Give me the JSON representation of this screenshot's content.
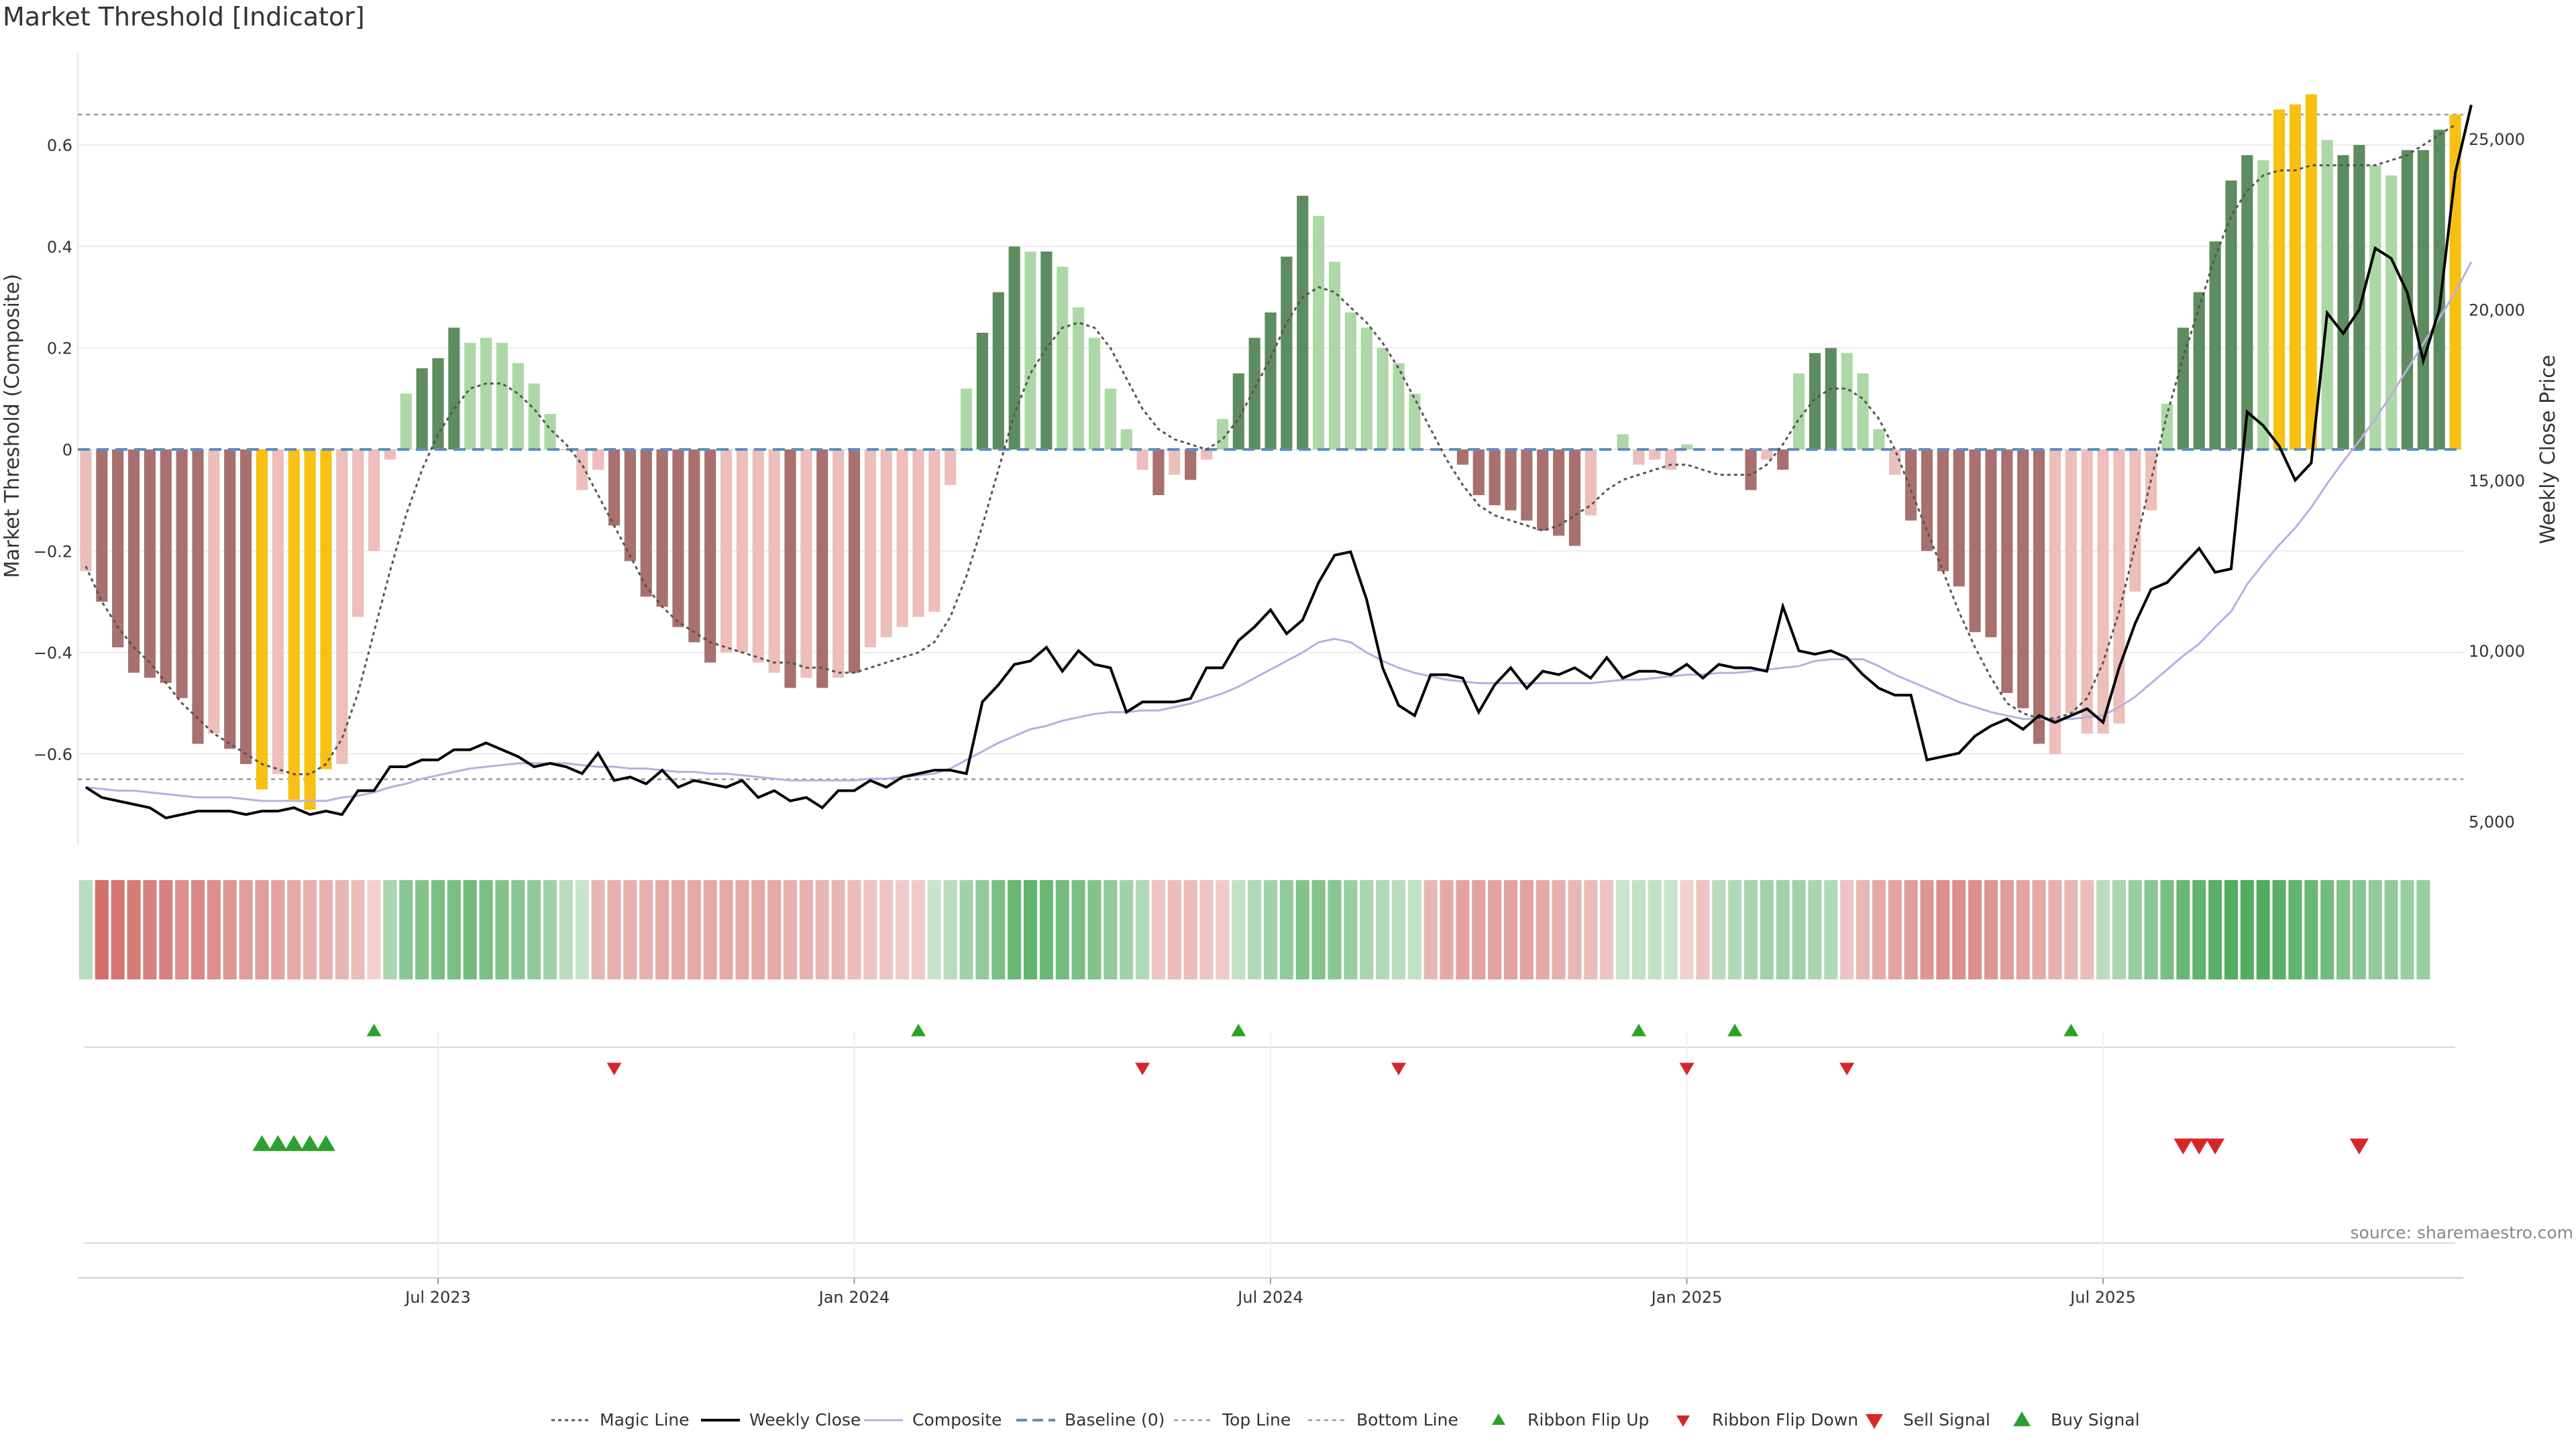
{
  "title": "Market Threshold [Indicator]",
  "source_text": "source: sharemaestro.com",
  "colors": {
    "bull_strong": "#5e8c5e",
    "bull_light": "#acd8a6",
    "bear_strong": "#a8716e",
    "bear_light": "#ecbfba",
    "extreme": "#f8c013",
    "magic_line": "#555555",
    "weekly_close": "#000000",
    "composite": "#b7afe0",
    "baseline": "#5b8fbf",
    "threshold_line": "#999999",
    "green_marker": "#2ca02c",
    "red_marker": "#d62728"
  },
  "chart_data": {
    "type": "bar",
    "title": "Market Threshold [Indicator]",
    "ylabel": "Market Threshold (Composite)",
    "y2label": "Weekly Close Price",
    "ylim": [
      -0.78,
      0.78
    ],
    "y2lim": [
      4300,
      27500
    ],
    "yticks": [
      -0.6,
      -0.4,
      -0.2,
      0,
      0.2,
      0.4,
      0.6
    ],
    "yticklabels": [
      "−0.6",
      "−0.4",
      "−0.2",
      "0",
      "0.2",
      "0.4",
      "0.6"
    ],
    "y2ticks": [
      5000,
      10000,
      15000,
      20000,
      25000
    ],
    "y2ticklabels": [
      "5,000",
      "10,000",
      "15,000",
      "20,000",
      "25,000"
    ],
    "xlabels": [
      {
        "label": "Jul 2023",
        "week": 22
      },
      {
        "label": "Jan 2024",
        "week": 48
      },
      {
        "label": "Jul 2024",
        "week": 74
      },
      {
        "label": "Jan 2025",
        "week": 100
      },
      {
        "label": "Jul 2025",
        "week": 126
      }
    ],
    "top_line": 0.66,
    "bottom_line": -0.65,
    "bars": [
      -0.24,
      -0.3,
      -0.39,
      -0.44,
      -0.45,
      -0.46,
      -0.49,
      -0.58,
      -0.56,
      -0.59,
      -0.62,
      -0.67,
      -0.64,
      -0.69,
      -0.71,
      -0.63,
      -0.62,
      -0.33,
      -0.2,
      -0.02,
      0.11,
      0.16,
      0.18,
      0.24,
      0.21,
      0.22,
      0.21,
      0.17,
      0.13,
      0.07,
      0,
      -0.08,
      -0.04,
      -0.15,
      -0.22,
      -0.29,
      -0.31,
      -0.35,
      -0.38,
      -0.42,
      -0.4,
      -0.4,
      -0.42,
      -0.44,
      -0.47,
      -0.45,
      -0.47,
      -0.45,
      -0.44,
      -0.39,
      -0.37,
      -0.35,
      -0.33,
      -0.32,
      -0.07,
      0.12,
      0.23,
      0.31,
      0.4,
      0.39,
      0.39,
      0.36,
      0.28,
      0.22,
      0.12,
      0.04,
      -0.04,
      -0.09,
      -0.05,
      -0.06,
      -0.02,
      0.06,
      0.15,
      0.22,
      0.27,
      0.38,
      0.5,
      0.46,
      0.37,
      0.27,
      0.24,
      0.2,
      0.17,
      0.11,
      0,
      0,
      -0.03,
      -0.09,
      -0.11,
      -0.12,
      -0.14,
      -0.16,
      -0.17,
      -0.19,
      -0.13,
      0,
      0.03,
      -0.03,
      -0.02,
      -0.04,
      0.01,
      0,
      0,
      0,
      -0.08,
      -0.02,
      -0.04,
      0.15,
      0.19,
      0.2,
      0.19,
      0.15,
      0.04,
      -0.05,
      -0.14,
      -0.2,
      -0.24,
      -0.27,
      -0.36,
      -0.37,
      -0.48,
      -0.51,
      -0.58,
      -0.6,
      -0.52,
      -0.56,
      -0.56,
      -0.54,
      -0.28,
      -0.12,
      0.09,
      0.24,
      0.31,
      0.41,
      0.53,
      0.58,
      0.57,
      0.67,
      0.68,
      0.7,
      0.61,
      0.58,
      0.6,
      0.56,
      0.54,
      0.59,
      0.59,
      0.63,
      0.66
    ],
    "bar_styles": [
      "bl",
      "bs",
      "bs",
      "bs",
      "bs",
      "bs",
      "bs",
      "bs",
      "bl",
      "bs",
      "bs",
      "ex",
      "bl",
      "ex",
      "ex",
      "ex",
      "bl",
      "bl",
      "bl",
      "bl",
      "gl",
      "gs",
      "gs",
      "gs",
      "gl",
      "gl",
      "gl",
      "gl",
      "gl",
      "gl",
      "bs",
      "bl",
      "bl",
      "bs",
      "bs",
      "bs",
      "bs",
      "bs",
      "bs",
      "bs",
      "bl",
      "bl",
      "bl",
      "bl",
      "bs",
      "bl",
      "bs",
      "bl",
      "bs",
      "bl",
      "bl",
      "bl",
      "bl",
      "bl",
      "bl",
      "gl",
      "gs",
      "gs",
      "gs",
      "gl",
      "gs",
      "gl",
      "gl",
      "gl",
      "gl",
      "gl",
      "bl",
      "bs",
      "bl",
      "bs",
      "bl",
      "gl",
      "gs",
      "gs",
      "gs",
      "gs",
      "gs",
      "gl",
      "gl",
      "gl",
      "gl",
      "gl",
      "gl",
      "gl",
      "bs",
      "bs",
      "bs",
      "bs",
      "bs",
      "bs",
      "bs",
      "bs",
      "bs",
      "bs",
      "bl",
      "gl",
      "gl",
      "bl",
      "bl",
      "bl",
      "gl",
      "bl",
      "bl",
      "bl",
      "bs",
      "bl",
      "bs",
      "gl",
      "gs",
      "gs",
      "gl",
      "gl",
      "gl",
      "bl",
      "bs",
      "bs",
      "bs",
      "bs",
      "bs",
      "bs",
      "bs",
      "bs",
      "bs",
      "bl",
      "bl",
      "bl",
      "bl",
      "bl",
      "bl",
      "bl",
      "gl",
      "gs",
      "gs",
      "gs",
      "gs",
      "gs",
      "gl",
      "ex",
      "ex",
      "ex",
      "gl",
      "gs",
      "gs",
      "gl",
      "gl",
      "gs",
      "gs",
      "gs",
      "ex"
    ],
    "series": [
      {
        "name": "Magic Line",
        "values": [
          -0.23,
          -0.3,
          -0.35,
          -0.39,
          -0.42,
          -0.46,
          -0.5,
          -0.53,
          -0.56,
          -0.58,
          -0.6,
          -0.62,
          -0.63,
          -0.64,
          -0.64,
          -0.62,
          -0.57,
          -0.48,
          -0.36,
          -0.24,
          -0.13,
          -0.04,
          0.03,
          0.08,
          0.12,
          0.13,
          0.13,
          0.11,
          0.08,
          0.04,
          0.01,
          -0.03,
          -0.09,
          -0.15,
          -0.21,
          -0.27,
          -0.31,
          -0.34,
          -0.36,
          -0.38,
          -0.39,
          -0.4,
          -0.41,
          -0.42,
          -0.42,
          -0.43,
          -0.43,
          -0.44,
          -0.44,
          -0.43,
          -0.42,
          -0.41,
          -0.4,
          -0.38,
          -0.33,
          -0.25,
          -0.15,
          -0.04,
          0.07,
          0.15,
          0.2,
          0.24,
          0.25,
          0.24,
          0.2,
          0.14,
          0.08,
          0.04,
          0.02,
          0.01,
          0,
          0.02,
          0.06,
          0.12,
          0.18,
          0.25,
          0.3,
          0.32,
          0.31,
          0.28,
          0.25,
          0.21,
          0.16,
          0.1,
          0.04,
          -0.02,
          -0.07,
          -0.11,
          -0.13,
          -0.14,
          -0.15,
          -0.16,
          -0.15,
          -0.13,
          -0.11,
          -0.08,
          -0.06,
          -0.05,
          -0.04,
          -0.03,
          -0.03,
          -0.04,
          -0.05,
          -0.05,
          -0.05,
          -0.03,
          0.01,
          0.06,
          0.1,
          0.12,
          0.12,
          0.1,
          0.06,
          0,
          -0.08,
          -0.16,
          -0.24,
          -0.32,
          -0.39,
          -0.45,
          -0.5,
          -0.52,
          -0.53,
          -0.53,
          -0.52,
          -0.49,
          -0.42,
          -0.32,
          -0.19,
          -0.06,
          0.07,
          0.18,
          0.28,
          0.38,
          0.46,
          0.51,
          0.54,
          0.55,
          0.55,
          0.56,
          0.56,
          0.56,
          0.56,
          0.56,
          0.57,
          0.58,
          0.6,
          0.62,
          0.64
        ]
      },
      {
        "name": "Weekly Close",
        "values": [
          6000,
          5700,
          5600,
          5500,
          5400,
          5100,
          5200,
          5300,
          5300,
          5300,
          5200,
          5300,
          5300,
          5400,
          5200,
          5300,
          5200,
          5900,
          5900,
          6600,
          6600,
          6800,
          6800,
          7100,
          7100,
          7300,
          7100,
          6900,
          6600,
          6700,
          6600,
          6400,
          7000,
          6200,
          6300,
          6100,
          6500,
          6000,
          6200,
          6100,
          6000,
          6200,
          5700,
          5900,
          5600,
          5700,
          5400,
          5900,
          5900,
          6200,
          6000,
          6300,
          6400,
          6500,
          6500,
          6400,
          8500,
          9000,
          9600,
          9700,
          10100,
          9400,
          10000,
          9600,
          9500,
          8200,
          8500,
          8500,
          8500,
          8600,
          9500,
          9500,
          10300,
          10700,
          11200,
          10500,
          10900,
          12000,
          12800,
          12900,
          11500,
          9500,
          8400,
          8100,
          9300,
          9300,
          9200,
          8200,
          9000,
          9500,
          8900,
          9400,
          9300,
          9500,
          9200,
          9800,
          9200,
          9400,
          9400,
          9300,
          9600,
          9200,
          9600,
          9500,
          9500,
          9400,
          11300,
          10000,
          9900,
          10000,
          9800,
          9300,
          8900,
          8700,
          8700,
          6800,
          6900,
          7000,
          7500,
          7800,
          8000,
          7700,
          8100,
          7900,
          8100,
          8300,
          7900,
          9500,
          10800,
          11800,
          12000,
          12500,
          13000,
          12300,
          12400,
          17000,
          16600,
          16000,
          15000,
          15500,
          19900,
          19300,
          20000,
          21800,
          21500,
          20500,
          18500,
          20000,
          24000,
          26000
        ]
      },
      {
        "name": "Composite",
        "values": [
          6000,
          5950,
          5900,
          5900,
          5850,
          5800,
          5750,
          5700,
          5700,
          5700,
          5650,
          5600,
          5600,
          5600,
          5600,
          5600,
          5700,
          5750,
          5850,
          6000,
          6100,
          6250,
          6350,
          6450,
          6550,
          6600,
          6650,
          6700,
          6700,
          6700,
          6700,
          6650,
          6600,
          6600,
          6550,
          6550,
          6500,
          6450,
          6450,
          6400,
          6400,
          6350,
          6300,
          6250,
          6200,
          6200,
          6200,
          6200,
          6200,
          6250,
          6250,
          6300,
          6350,
          6400,
          6550,
          6800,
          7050,
          7300,
          7500,
          7700,
          7800,
          7950,
          8050,
          8150,
          8200,
          8200,
          8250,
          8250,
          8350,
          8450,
          8600,
          8750,
          8950,
          9200,
          9450,
          9700,
          9950,
          10250,
          10350,
          10250,
          9950,
          9700,
          9500,
          9350,
          9250,
          9150,
          9100,
          9050,
          9050,
          9050,
          9050,
          9050,
          9050,
          9050,
          9050,
          9100,
          9150,
          9150,
          9200,
          9250,
          9300,
          9300,
          9350,
          9350,
          9400,
          9450,
          9500,
          9550,
          9700,
          9750,
          9750,
          9750,
          9550,
          9300,
          9100,
          8900,
          8700,
          8500,
          8350,
          8200,
          8100,
          8000,
          8000,
          8000,
          8000,
          8050,
          8100,
          8350,
          8650,
          9050,
          9450,
          9850,
          10200,
          10700,
          11150,
          11950,
          12550,
          13100,
          13600,
          14200,
          14900,
          15550,
          16150,
          16800,
          17500,
          18250,
          19000,
          19750,
          20500,
          21400
        ]
      }
    ],
    "ribbon": [
      0.2,
      -0.85,
      -0.8,
      -0.75,
      -0.7,
      -0.7,
      -0.6,
      -0.65,
      -0.6,
      -0.55,
      -0.5,
      -0.5,
      -0.45,
      -0.4,
      -0.35,
      -0.35,
      -0.3,
      -0.25,
      -0.1,
      0.3,
      0.5,
      0.55,
      0.6,
      0.6,
      0.65,
      0.6,
      0.55,
      0.5,
      0.45,
      0.35,
      0.2,
      0.1,
      -0.3,
      -0.35,
      -0.35,
      -0.35,
      -0.4,
      -0.4,
      -0.4,
      -0.4,
      -0.4,
      -0.4,
      -0.4,
      -0.4,
      -0.35,
      -0.35,
      -0.3,
      -0.3,
      -0.25,
      -0.2,
      -0.2,
      -0.15,
      -0.15,
      0.1,
      0.2,
      0.35,
      0.45,
      0.6,
      0.7,
      0.75,
      0.7,
      0.65,
      0.6,
      0.55,
      0.45,
      0.35,
      0.25,
      -0.2,
      -0.25,
      -0.25,
      -0.2,
      -0.15,
      0.15,
      0.25,
      0.35,
      0.45,
      0.55,
      0.55,
      0.5,
      0.4,
      0.3,
      0.25,
      0.2,
      0.15,
      -0.3,
      -0.4,
      -0.45,
      -0.45,
      -0.45,
      -0.45,
      -0.45,
      -0.4,
      -0.35,
      -0.3,
      -0.25,
      -0.2,
      0.1,
      0.15,
      0.15,
      0.1,
      -0.1,
      -0.2,
      0.2,
      0.25,
      0.3,
      0.35,
      0.35,
      0.35,
      0.3,
      0.25,
      -0.2,
      -0.3,
      -0.4,
      -0.45,
      -0.5,
      -0.55,
      -0.6,
      -0.6,
      -0.6,
      -0.55,
      -0.5,
      -0.45,
      -0.4,
      -0.35,
      -0.3,
      -0.25,
      0.2,
      0.3,
      0.4,
      0.5,
      0.6,
      0.7,
      0.75,
      0.8,
      0.85,
      0.85,
      0.85,
      0.8,
      0.75,
      0.7,
      0.65,
      0.55,
      0.5,
      0.45,
      0.45,
      0.4,
      0.4
    ],
    "ribbon_flip_up": [
      18,
      52,
      72,
      97,
      103,
      124
    ],
    "ribbon_flip_down": [
      33,
      66,
      82,
      100,
      110
    ],
    "buy_signal": [
      11,
      12,
      13,
      14,
      15
    ],
    "sell_signal": [
      131,
      132,
      133,
      142
    ],
    "legend": [
      "Magic Line",
      "Weekly Close",
      "Composite",
      "Baseline (0)",
      "Top Line",
      "Bottom Line",
      "Ribbon Flip Up",
      "Ribbon Flip Down",
      "Sell Signal",
      "Buy Signal"
    ],
    "legend_position": "bottom-center"
  }
}
